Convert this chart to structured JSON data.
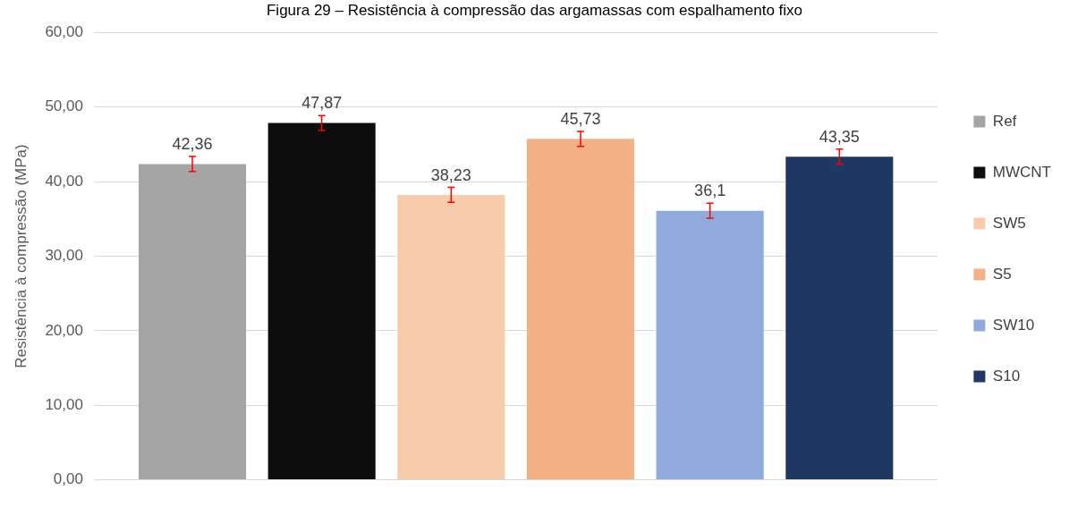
{
  "chart_data": {
    "type": "bar",
    "title": "Figura 29 – Resistência à compressão das argamassas com espalhamento fixo",
    "ylabel": "Resistência à compressão (MPa)",
    "categories": [
      null
    ],
    "series": [
      {
        "name": "Ref",
        "color": "#a5a5a5",
        "values": [
          42.36
        ],
        "errors": [
          1
        ],
        "value_labels": [
          "42,36"
        ]
      },
      {
        "name": "MWCNT",
        "color": "#0d0d0d",
        "values": [
          47.87
        ],
        "errors": [
          1
        ],
        "value_labels": [
          "47,87"
        ]
      },
      {
        "name": "SW5",
        "color": "#f8cbad",
        "values": [
          38.23
        ],
        "errors": [
          1
        ],
        "value_labels": [
          "38,23"
        ]
      },
      {
        "name": "S5",
        "color": "#f4b183",
        "values": [
          45.73
        ],
        "errors": [
          1
        ],
        "value_labels": [
          "45,73"
        ]
      },
      {
        "name": "SW10",
        "color": "#8faadc",
        "values": [
          36.1
        ],
        "errors": [
          1
        ],
        "value_labels": [
          "36,1"
        ]
      },
      {
        "name": "S10",
        "color": "#203864",
        "values": [
          43.35
        ],
        "errors": [
          1
        ],
        "value_labels": [
          "43,35"
        ]
      }
    ],
    "ylim": [
      0,
      60
    ],
    "yticks": [
      {
        "value": 0,
        "label": "0,00"
      },
      {
        "value": 10,
        "label": "10,00"
      },
      {
        "value": 20,
        "label": "20,00"
      },
      {
        "value": 30,
        "label": "30,00"
      },
      {
        "value": 40,
        "label": "40,00"
      },
      {
        "value": 50,
        "label": "50,00"
      },
      {
        "value": 60,
        "label": "60,00"
      }
    ],
    "grid": "y",
    "legend": "right"
  }
}
